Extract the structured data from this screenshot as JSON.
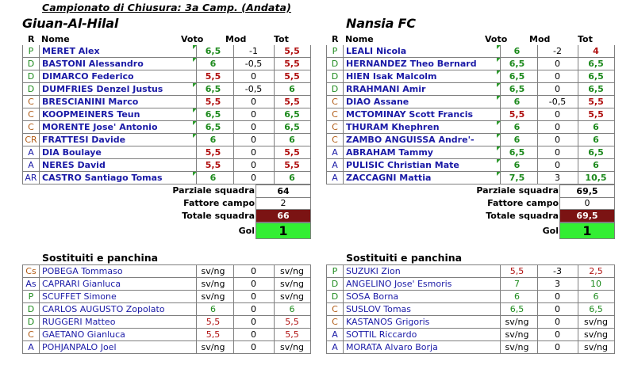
{
  "header": {
    "title": "Campionato di Chiusura: 3a Camp. (Andata)"
  },
  "columns": {
    "role": "R",
    "name": "Nome",
    "voto": "Voto",
    "mod": "Mod",
    "tot": "Tot"
  },
  "home": {
    "name": "Giuan-Al-Hilal",
    "players": [
      {
        "role": "P",
        "name": "MERET Alex",
        "voto": "6,5",
        "mod": "-1",
        "tot": "5,5",
        "vc": "g",
        "tc": "r",
        "mark": true
      },
      {
        "role": "D",
        "name": "BASTONI Alessandro",
        "voto": "6",
        "mod": "-0,5",
        "tot": "5,5",
        "vc": "g",
        "tc": "r",
        "mark": true
      },
      {
        "role": "D",
        "name": "DIMARCO Federico",
        "voto": "5,5",
        "mod": "0",
        "tot": "5,5",
        "vc": "r",
        "tc": "r",
        "mark": false
      },
      {
        "role": "D",
        "name": "DUMFRIES Denzel Justus",
        "voto": "6,5",
        "mod": "-0,5",
        "tot": "6",
        "vc": "g",
        "tc": "g",
        "mark": true
      },
      {
        "role": "C",
        "name": "BRESCIANINI Marco",
        "voto": "5,5",
        "mod": "0",
        "tot": "5,5",
        "vc": "r",
        "tc": "r",
        "mark": false
      },
      {
        "role": "C",
        "name": "KOOPMEINERS Teun",
        "voto": "6,5",
        "mod": "0",
        "tot": "6,5",
        "vc": "g",
        "tc": "g",
        "mark": true
      },
      {
        "role": "C",
        "name": "MORENTE Jose' Antonio",
        "voto": "6,5",
        "mod": "0",
        "tot": "6,5",
        "vc": "g",
        "tc": "g",
        "mark": true
      },
      {
        "role": "CR",
        "name": "FRATTESI Davide",
        "voto": "6",
        "mod": "0",
        "tot": "6",
        "vc": "g",
        "tc": "g",
        "mark": true
      },
      {
        "role": "A",
        "name": "DIA Boulaye",
        "voto": "5,5",
        "mod": "0",
        "tot": "5,5",
        "vc": "r",
        "tc": "r",
        "mark": false
      },
      {
        "role": "A",
        "name": "NERES David",
        "voto": "5,5",
        "mod": "0",
        "tot": "5,5",
        "vc": "r",
        "tc": "r",
        "mark": false
      },
      {
        "role": "AR",
        "name": "CASTRO Santiago Tomas",
        "voto": "6",
        "mod": "0",
        "tot": "6",
        "vc": "g",
        "tc": "g",
        "mark": true
      }
    ],
    "totals": {
      "parziale_label": "Parziale squadra",
      "parziale": "64",
      "fattore_label": "Fattore campo",
      "fattore": "2",
      "totale_label": "Totale squadra",
      "totale": "66",
      "gol_label": "Gol",
      "gol": "1"
    },
    "subs_title": "Sostituiti e panchina",
    "subs": [
      {
        "role": "Cs",
        "name": "POBEGA Tommaso",
        "voto": "sv/ng",
        "mod": "0",
        "tot": "sv/ng",
        "vc": "k",
        "tc": "k",
        "mark": false
      },
      {
        "role": "As",
        "name": "CAPRARI Gianluca",
        "voto": "sv/ng",
        "mod": "0",
        "tot": "sv/ng",
        "vc": "k",
        "tc": "k",
        "mark": false
      },
      {
        "role": "P",
        "name": "SCUFFET Simone",
        "voto": "sv/ng",
        "mod": "0",
        "tot": "sv/ng",
        "vc": "k",
        "tc": "k",
        "mark": false
      },
      {
        "role": "D",
        "name": "CARLOS AUGUSTO Zopolato",
        "voto": "6",
        "mod": "0",
        "tot": "6",
        "vc": "g",
        "tc": "g",
        "mark": false
      },
      {
        "role": "D",
        "name": "RUGGERI Matteo",
        "voto": "5,5",
        "mod": "0",
        "tot": "5,5",
        "vc": "r",
        "tc": "r",
        "mark": false
      },
      {
        "role": "C",
        "name": "GAETANO Gianluca",
        "voto": "5,5",
        "mod": "0",
        "tot": "5,5",
        "vc": "r",
        "tc": "r",
        "mark": false
      },
      {
        "role": "A",
        "name": "POHJANPALO Joel",
        "voto": "sv/ng",
        "mod": "0",
        "tot": "sv/ng",
        "vc": "k",
        "tc": "k",
        "mark": false
      }
    ]
  },
  "away": {
    "name": "Nansia FC",
    "players": [
      {
        "role": "P",
        "name": "LEALI Nicola",
        "voto": "6",
        "mod": "-2",
        "tot": "4",
        "vc": "g",
        "tc": "r",
        "mark": true
      },
      {
        "role": "D",
        "name": "HERNANDEZ Theo Bernard",
        "voto": "6,5",
        "mod": "0",
        "tot": "6,5",
        "vc": "g",
        "tc": "g",
        "mark": true
      },
      {
        "role": "D",
        "name": "HIEN Isak Malcolm",
        "voto": "6,5",
        "mod": "0",
        "tot": "6,5",
        "vc": "g",
        "tc": "g",
        "mark": true
      },
      {
        "role": "D",
        "name": "RRAHMANI Amir",
        "voto": "6,5",
        "mod": "0",
        "tot": "6,5",
        "vc": "g",
        "tc": "g",
        "mark": true
      },
      {
        "role": "C",
        "name": "DIAO Assane",
        "voto": "6",
        "mod": "-0,5",
        "tot": "5,5",
        "vc": "g",
        "tc": "r",
        "mark": true
      },
      {
        "role": "C",
        "name": "MCTOMINAY Scott Francis",
        "voto": "5,5",
        "mod": "0",
        "tot": "5,5",
        "vc": "r",
        "tc": "r",
        "mark": false
      },
      {
        "role": "C",
        "name": "THURAM Khephren",
        "voto": "6",
        "mod": "0",
        "tot": "6",
        "vc": "g",
        "tc": "g",
        "mark": true
      },
      {
        "role": "C",
        "name": "ZAMBO ANGUISSA Andre'-",
        "voto": "6",
        "mod": "0",
        "tot": "6",
        "vc": "g",
        "tc": "g",
        "mark": true
      },
      {
        "role": "A",
        "name": "ABRAHAM Tammy",
        "voto": "6,5",
        "mod": "0",
        "tot": "6,5",
        "vc": "g",
        "tc": "g",
        "mark": true
      },
      {
        "role": "A",
        "name": "PULISIC Christian Mate",
        "voto": "6",
        "mod": "0",
        "tot": "6",
        "vc": "g",
        "tc": "g",
        "mark": true
      },
      {
        "role": "A",
        "name": "ZACCAGNI Mattia",
        "voto": "7,5",
        "mod": "3",
        "tot": "10,5",
        "vc": "g",
        "tc": "g",
        "mark": true
      }
    ],
    "totals": {
      "parziale_label": "Parziale squadra",
      "parziale": "69,5",
      "fattore_label": "Fattore campo",
      "fattore": "0",
      "totale_label": "Totale squadra",
      "totale": "69,5",
      "gol_label": "Gol",
      "gol": "1"
    },
    "subs_title": "Sostituiti e panchina",
    "subs": [
      {
        "role": "P",
        "name": "SUZUKI Zion",
        "voto": "5,5",
        "mod": "-3",
        "tot": "2,5",
        "vc": "r",
        "tc": "r",
        "mark": false
      },
      {
        "role": "D",
        "name": "ANGELINO Jose' Esmoris",
        "voto": "7",
        "mod": "3",
        "tot": "10",
        "vc": "g",
        "tc": "g",
        "mark": false
      },
      {
        "role": "D",
        "name": "SOSA Borna",
        "voto": "6",
        "mod": "0",
        "tot": "6",
        "vc": "g",
        "tc": "g",
        "mark": false
      },
      {
        "role": "C",
        "name": "SUSLOV Tomas",
        "voto": "6,5",
        "mod": "0",
        "tot": "6,5",
        "vc": "g",
        "tc": "g",
        "mark": false
      },
      {
        "role": "C",
        "name": "KASTANOS Grigoris",
        "voto": "sv/ng",
        "mod": "0",
        "tot": "sv/ng",
        "vc": "k",
        "tc": "k",
        "mark": false
      },
      {
        "role": "A",
        "name": "SOTTIL Riccardo",
        "voto": "sv/ng",
        "mod": "0",
        "tot": "sv/ng",
        "vc": "k",
        "tc": "k",
        "mark": false
      },
      {
        "role": "A",
        "name": "MORATA Alvaro Borja",
        "voto": "sv/ng",
        "mod": "0",
        "tot": "sv/ng",
        "vc": "k",
        "tc": "k",
        "mark": false
      }
    ]
  },
  "colors": {
    "green": "#1d8a1d",
    "red": "#b01010",
    "total_bg": "#7b1313",
    "gol_bg": "#33ee33",
    "name_blue": "#1a1aa6",
    "role_green": "#1d8a1d",
    "role_red": "#b05a14"
  }
}
